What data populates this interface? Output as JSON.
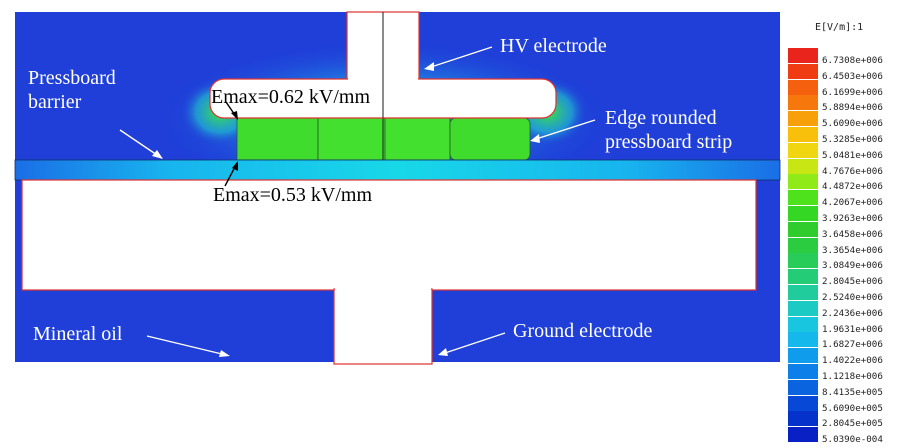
{
  "legend": {
    "title": "E[V/m]:1",
    "values": [
      "6.7308e+006",
      "6.4503e+006",
      "6.1699e+006",
      "5.8894e+006",
      "5.6090e+006",
      "5.3285e+006",
      "5.0481e+006",
      "4.7676e+006",
      "4.4872e+006",
      "4.2067e+006",
      "3.9263e+006",
      "3.6458e+006",
      "3.3654e+006",
      "3.0849e+006",
      "2.8045e+006",
      "2.5240e+006",
      "2.2436e+006",
      "1.9631e+006",
      "1.6827e+006",
      "1.4022e+006",
      "1.1218e+006",
      "8.4135e+005",
      "5.6090e+005",
      "2.8045e+005",
      "5.0390e-004"
    ],
    "colors": [
      "#e8241c",
      "#f03c12",
      "#f4600e",
      "#f6780c",
      "#f8a00a",
      "#f8c00a",
      "#f0d610",
      "#c8e614",
      "#90ea18",
      "#4ee21c",
      "#34d824",
      "#30cc2e",
      "#2ccc40",
      "#28cc58",
      "#24cc78",
      "#20cc9c",
      "#1ccac4",
      "#18c6e0",
      "#14b8ea",
      "#109cec",
      "#0c80e8",
      "#0a64e0",
      "#0848d6",
      "#0632cc",
      "#0820c4"
    ]
  },
  "labels": {
    "hv_electrode": "HV electrode",
    "pressboard_barrier_1": "Pressboard",
    "pressboard_barrier_2": "barrier",
    "edge_rounded_1": "Edge rounded",
    "edge_rounded_2": "pressboard strip",
    "emax_top": "Emax=0.62 kV/mm",
    "emax_bottom": "Emax=0.53 kV/mm",
    "mineral_oil": "Mineral oil",
    "ground_electrode": "Ground electrode"
  },
  "colors": {
    "oil_field": "#1f3fd8",
    "strip_green": "#3fdc2e",
    "barrier_cyan": "#18c8ee",
    "electrode_white": "#ffffff",
    "electrode_outline": "#e03030"
  }
}
